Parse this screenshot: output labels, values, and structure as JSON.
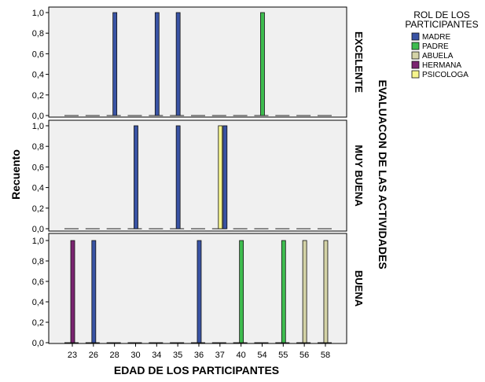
{
  "chart_data": {
    "type": "bar",
    "ylabel": "Recuento",
    "xlabel": "EDAD DE LOS PARTICIPANTES",
    "facet_label": "EVALUACON DE LAS ACTIVIDADES",
    "ylim": [
      0,
      1
    ],
    "yticks": [
      "0,0",
      "0,2",
      "0,4",
      "0,6",
      "0,8",
      "1,0"
    ],
    "categories": [
      "23",
      "26",
      "28",
      "30",
      "34",
      "35",
      "36",
      "37",
      "40",
      "54",
      "55",
      "56",
      "58"
    ],
    "series": [
      {
        "name": "MADRE",
        "color": "#3953a4"
      },
      {
        "name": "PADRE",
        "color": "#3ebc4f"
      },
      {
        "name": "ABUELA",
        "color": "#d4d3a7"
      },
      {
        "name": "HERMANA",
        "color": "#7b2471"
      },
      {
        "name": "PSICOLOGA",
        "color": "#f6f58d"
      }
    ],
    "legend": {
      "title": "ROL DE LOS PARTICIPANTES",
      "position": "top-right"
    },
    "panels": [
      {
        "label": "EXCELENTE",
        "bars": [
          {
            "category": "28",
            "series": "MADRE",
            "value": 1
          },
          {
            "category": "34",
            "series": "MADRE",
            "value": 1
          },
          {
            "category": "35",
            "series": "MADRE",
            "value": 1
          },
          {
            "category": "54",
            "series": "PADRE",
            "value": 1
          }
        ]
      },
      {
        "label": "MUY BUENA",
        "bars": [
          {
            "category": "30",
            "series": "MADRE",
            "value": 1
          },
          {
            "category": "35",
            "series": "MADRE",
            "value": 1
          },
          {
            "category": "37",
            "series": "PSICOLOGA",
            "value": 1
          },
          {
            "category": "37",
            "series": "MADRE",
            "value": 1
          }
        ]
      },
      {
        "label": "BUENA",
        "bars": [
          {
            "category": "23",
            "series": "HERMANA",
            "value": 1
          },
          {
            "category": "26",
            "series": "MADRE",
            "value": 1
          },
          {
            "category": "36",
            "series": "MADRE",
            "value": 1
          },
          {
            "category": "40",
            "series": "PADRE",
            "value": 1
          },
          {
            "category": "55",
            "series": "PADRE",
            "value": 1
          },
          {
            "category": "56",
            "series": "ABUELA",
            "value": 1
          },
          {
            "category": "58",
            "series": "ABUELA",
            "value": 1
          }
        ]
      }
    ]
  }
}
